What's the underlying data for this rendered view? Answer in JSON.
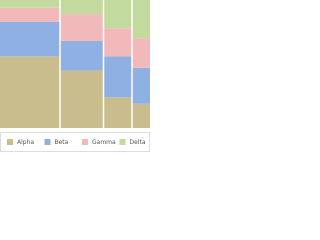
{
  "chart_data": {
    "type": "mekko",
    "categories": [
      null,
      null,
      null,
      null
    ],
    "widths": [
      40,
      29,
      19,
      12
    ],
    "ylim": [
      0,
      100
    ],
    "legend": "bottom",
    "series": [
      {
        "name": "Alpha",
        "color": "#c9bd8e",
        "values": [
          56,
          45,
          24,
          19
        ]
      },
      {
        "name": "Beta",
        "color": "#8fb0e2",
        "values": [
          27,
          23,
          32,
          28
        ]
      },
      {
        "name": "Gamma",
        "color": "#f2b9bb",
        "values": [
          11,
          21,
          22,
          23
        ]
      },
      {
        "name": "Delta",
        "color": "#c3da9e",
        "values": [
          6,
          11,
          22,
          30
        ]
      }
    ]
  }
}
